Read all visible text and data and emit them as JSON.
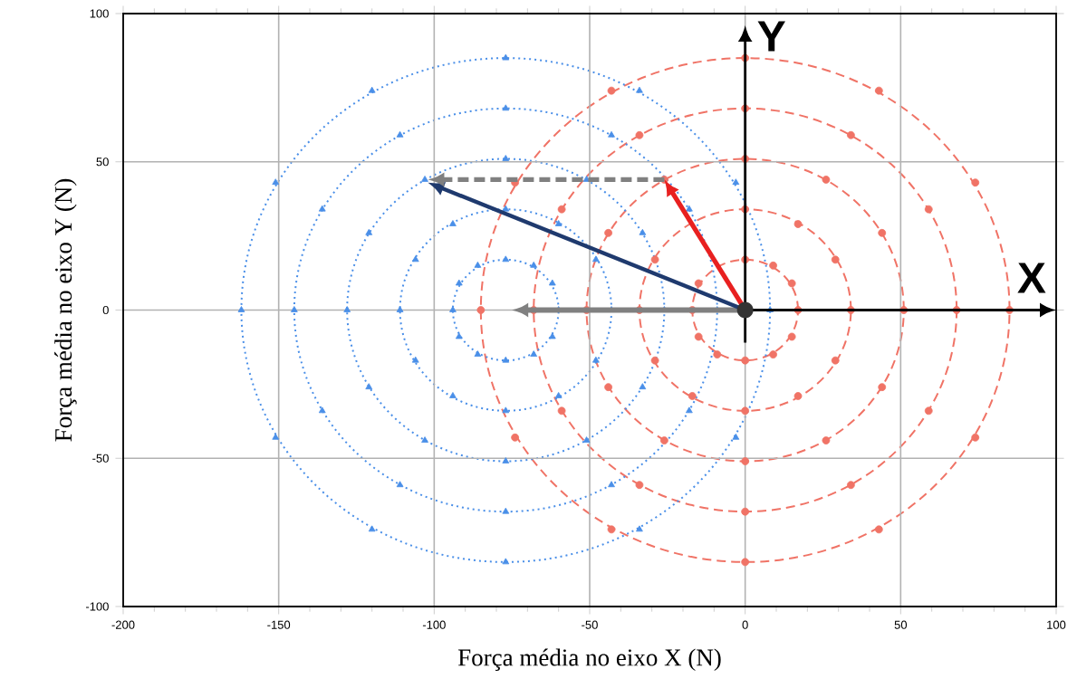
{
  "chart_data": {
    "type": "scatter",
    "xlabel": "Força média no eixo X (N)",
    "ylabel": "Força média no eixo Y (N)",
    "xlim": [
      -200,
      100
    ],
    "ylim": [
      -100,
      100
    ],
    "xticks": [
      -200,
      -150,
      -100,
      -50,
      0,
      50,
      100
    ],
    "yticks": [
      -100,
      -50,
      0,
      50,
      100
    ],
    "grid": true,
    "annotations": [
      "X",
      "Y"
    ],
    "series": [
      {
        "color": "#f07366",
        "marker": "circle",
        "x": [
          0,
          9,
          15,
          17,
          15,
          9,
          0,
          -9,
          -15,
          -17,
          -15
        ],
        "values": [
          17,
          15,
          9,
          0,
          -9,
          -15,
          -17,
          -15,
          -9,
          0,
          9
        ]
      },
      {
        "color": "#f07366",
        "marker": "circle",
        "x": [
          0,
          17,
          29,
          34,
          29,
          17,
          0,
          -17,
          -29,
          -34,
          -29
        ],
        "values": [
          34,
          29,
          17,
          0,
          -17,
          -29,
          -34,
          -29,
          -17,
          0,
          17
        ]
      },
      {
        "color": "#f07366",
        "marker": "circle",
        "x": [
          0,
          26,
          44,
          51,
          44,
          26,
          0,
          -26,
          -44,
          -51,
          -44,
          -26
        ],
        "values": [
          51,
          44,
          26,
          0,
          -26,
          -44,
          -51,
          -44,
          -26,
          0,
          26,
          44
        ]
      },
      {
        "color": "#f07366",
        "marker": "circle",
        "x": [
          0,
          34,
          59,
          68,
          59,
          34,
          0,
          -34,
          -59,
          -68,
          -59,
          -34
        ],
        "values": [
          68,
          59,
          34,
          0,
          -34,
          -59,
          -68,
          -59,
          -34,
          0,
          34,
          59
        ]
      },
      {
        "color": "#f07366",
        "marker": "circle",
        "x": [
          0,
          43,
          74,
          85,
          74,
          43,
          0,
          -43,
          -74,
          -85,
          -74,
          -43
        ],
        "values": [
          85,
          74,
          43,
          0,
          -43,
          -74,
          -85,
          -74,
          -43,
          0,
          43,
          74
        ]
      },
      {
        "color": "#4a8fe8",
        "marker": "triangle",
        "x": [
          -77,
          -68,
          -62,
          -60,
          -62,
          -68,
          -77,
          -86,
          -92,
          -94,
          -92,
          -86
        ],
        "values": [
          17,
          15,
          9,
          0,
          -9,
          -15,
          -17,
          -15,
          -9,
          0,
          9,
          15
        ]
      },
      {
        "color": "#4a8fe8",
        "marker": "triangle",
        "x": [
          -77,
          -60,
          -48,
          -43,
          -48,
          -60,
          -77,
          -94,
          -106,
          -111,
          -106,
          -94
        ],
        "values": [
          34,
          29,
          17,
          0,
          -17,
          -29,
          -34,
          -29,
          -17,
          0,
          17,
          29
        ]
      },
      {
        "color": "#4a8fe8",
        "marker": "triangle",
        "x": [
          -77,
          -51,
          -33,
          -26,
          -33,
          -51,
          -77,
          -103,
          -121,
          -128,
          -121,
          -103
        ],
        "values": [
          51,
          44,
          26,
          0,
          -26,
          -44,
          -51,
          -44,
          -26,
          0,
          26,
          44
        ]
      },
      {
        "color": "#4a8fe8",
        "marker": "triangle",
        "x": [
          -77,
          -43,
          -18,
          -9,
          -18,
          -43,
          -77,
          -111,
          -136,
          -145,
          -136,
          -111
        ],
        "values": [
          68,
          59,
          34,
          0,
          -34,
          -59,
          -68,
          -59,
          -34,
          0,
          34,
          59
        ]
      },
      {
        "color": "#4a8fe8",
        "marker": "triangle",
        "x": [
          -77,
          -34,
          -3,
          8,
          -3,
          -34,
          -77,
          -120,
          -151,
          -162,
          -151,
          -120
        ],
        "values": [
          85,
          74,
          43,
          0,
          -43,
          -74,
          -85,
          -74,
          -43,
          0,
          43,
          74
        ]
      }
    ]
  }
}
